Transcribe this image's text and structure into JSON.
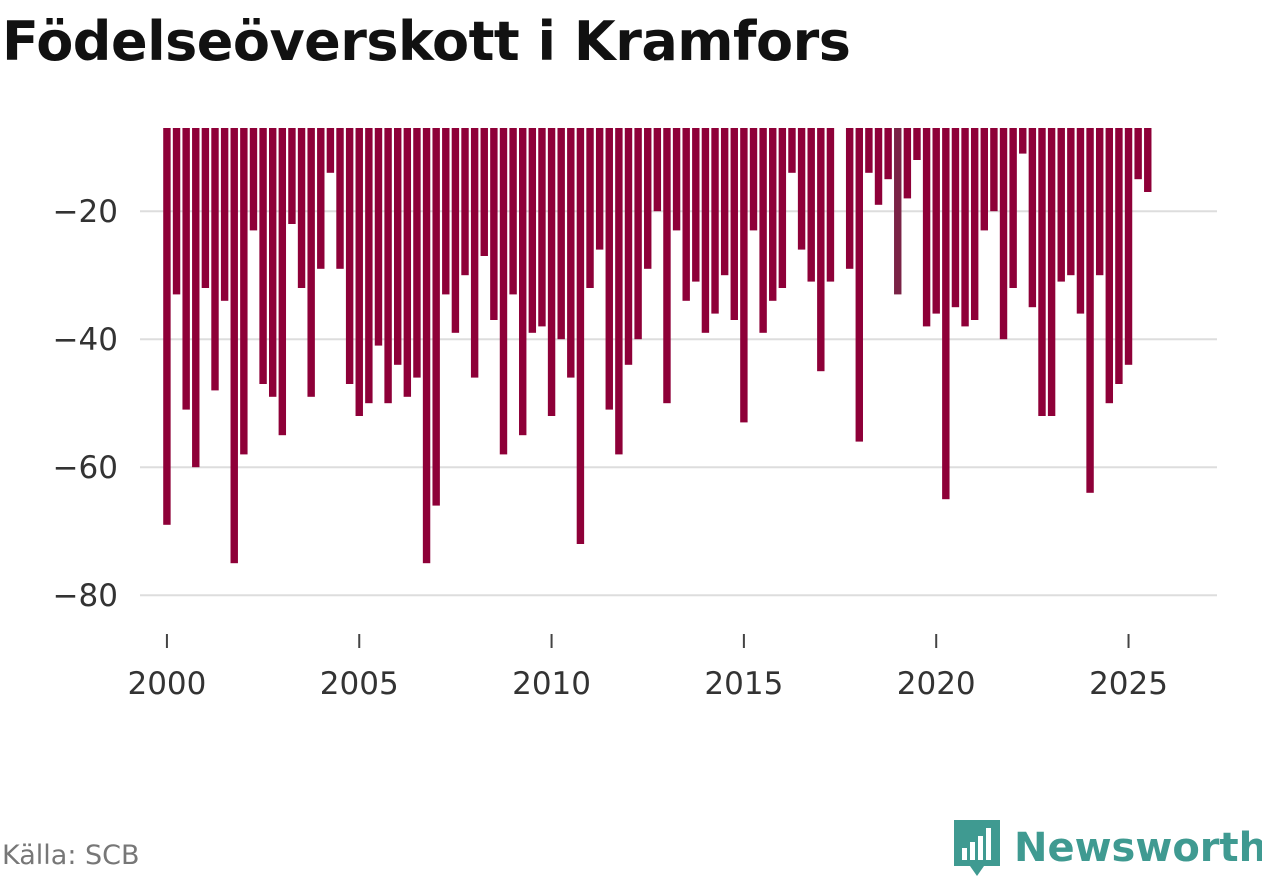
{
  "chart_data": {
    "type": "bar",
    "title": "Födelseöverskott i Kramfors",
    "source": "Källa: SCB",
    "brand": "Newsworthy",
    "xlabel": "",
    "ylabel": "",
    "ylim": [
      -87,
      -7
    ],
    "baseline": -7,
    "yticks": [
      -20,
      -40,
      -60,
      -80
    ],
    "ytick_labels": [
      "−20",
      "−40",
      "−60",
      "−80"
    ],
    "xticks": [
      2000,
      2005,
      2010,
      2015,
      2020,
      2025
    ],
    "xtick_labels": [
      "2000",
      "2005",
      "2010",
      "2015",
      "2020",
      "2025"
    ],
    "x_start": 2000.0,
    "x_step": 0.25,
    "grid": true,
    "bar_color": "#8e0038",
    "highlight_color": "#7a2346",
    "highlight_index": 76,
    "values": [
      -69,
      -33,
      -51,
      -60,
      -32,
      -48,
      -34,
      -75,
      -58,
      -23,
      -47,
      -49,
      -55,
      -22,
      -32,
      -49,
      -29,
      -14,
      -29,
      -47,
      -52,
      -50,
      -41,
      -50,
      -44,
      -49,
      -46,
      -75,
      -66,
      -33,
      -39,
      -30,
      -46,
      -27,
      -37,
      -58,
      -33,
      -55,
      -39,
      -38,
      -52,
      -40,
      -46,
      -72,
      -32,
      -26,
      -51,
      -58,
      -44,
      -40,
      -29,
      -20,
      -50,
      -23,
      -34,
      -31,
      -39,
      -36,
      -30,
      -37,
      -53,
      -23,
      -39,
      -34,
      -32,
      -14,
      -26,
      -31,
      -45,
      -31,
      null,
      -29,
      -56,
      -14,
      -19,
      -15,
      -33,
      -18,
      -12,
      -38,
      -36,
      -65,
      -35,
      -38,
      -37,
      -23,
      -20,
      -40,
      -32,
      -11,
      -35,
      -52,
      -52,
      -31,
      -30,
      -36,
      -64,
      -30,
      -50,
      -47,
      -44,
      -15,
      -17
    ]
  },
  "colors": {
    "grid": "#dddddd",
    "axis_tick": "#444444",
    "logo": "#3f9a91"
  }
}
